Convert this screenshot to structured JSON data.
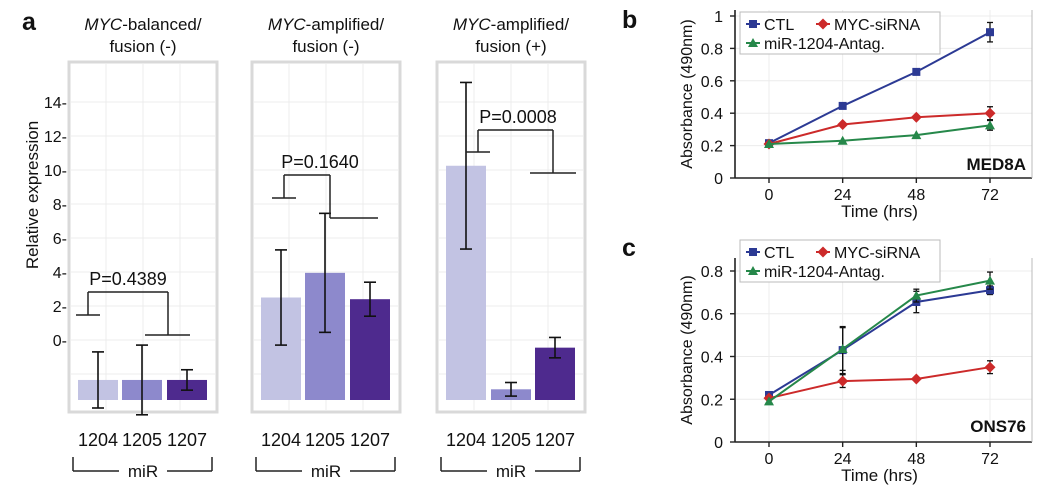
{
  "colors": {
    "bar_1204": "#c2c3e3",
    "bar_1205": "#8d89cc",
    "bar_1207": "#4e2a8e",
    "panel_border": "#d9d9d9",
    "grid": "#ececec",
    "ctl": "#2c3a94",
    "myc": "#cc2a2a",
    "antag": "#26884a"
  },
  "chart_data": [
    {
      "panel_letter": "a",
      "type": "bar",
      "ylabel": "Relative expression",
      "xlabel": "miR",
      "ytick_labels": [
        "14-",
        "12-",
        "10-",
        "8-",
        "6-",
        "4-",
        "2-",
        "0-"
      ],
      "ytick_values": [
        14,
        12,
        10,
        8,
        6,
        4,
        2,
        0
      ],
      "ylim": [
        -3.6,
        16
      ],
      "categories": [
        "1204",
        "1205",
        "1207"
      ],
      "panels": [
        {
          "title_italic": "MYC",
          "title_rest": "-balanced/",
          "title_line2": "fusion (-)",
          "values": [
            -2.35,
            -2.35,
            -2.35
          ],
          "errors": [
            1.65,
            2.05,
            0.6
          ],
          "pvalue": "P=0.4389"
        },
        {
          "title_italic": "MYC",
          "title_rest": "-amplified/",
          "title_line2": "fusion (-)",
          "values": [
            2.5,
            3.95,
            2.4
          ],
          "errors": [
            2.8,
            3.5,
            1.0
          ],
          "pvalue": "P=0.1640"
        },
        {
          "title_italic": "MYC",
          "title_rest": "-amplified/",
          "title_line2": "fusion (+)",
          "values": [
            10.25,
            -2.9,
            -0.45
          ],
          "errors": [
            4.9,
            0.4,
            0.6
          ],
          "pvalue": "P=0.0008"
        }
      ]
    },
    {
      "panel_letter": "b",
      "type": "line",
      "cell_line": "MED8A",
      "xlabel": "Time (hrs)",
      "ylabel": "Absorbance (490nm)",
      "x": [
        0,
        24,
        48,
        72
      ],
      "xtick_labels": [
        "0",
        "24",
        "48",
        "72"
      ],
      "ytick_labels": [
        "1",
        "0.8",
        "0.6",
        "0.4",
        "0.2",
        "0"
      ],
      "ytick_values": [
        1,
        0.8,
        0.6,
        0.4,
        0.2,
        0
      ],
      "ylim": [
        0,
        1
      ],
      "legend": [
        "CTL",
        "MYC-siRNA",
        "miR-1204-Antag."
      ],
      "series": [
        {
          "name": "CTL",
          "values": [
            0.215,
            0.445,
            0.655,
            0.9
          ],
          "errors": [
            0.01,
            0.01,
            0.01,
            0.06
          ]
        },
        {
          "name": "MYC-siRNA",
          "values": [
            0.21,
            0.33,
            0.375,
            0.4
          ],
          "errors": [
            0.01,
            0.01,
            0.01,
            0.04
          ]
        },
        {
          "name": "miR-1204-Antag.",
          "values": [
            0.21,
            0.23,
            0.265,
            0.325
          ],
          "errors": [
            0.01,
            0.01,
            0.01,
            0.03
          ]
        }
      ]
    },
    {
      "panel_letter": "c",
      "type": "line",
      "cell_line": "ONS76",
      "xlabel": "Time (hrs)",
      "ylabel": "Absorbance (490nm)",
      "x": [
        0,
        24,
        48,
        72
      ],
      "xtick_labels": [
        "0",
        "24",
        "48",
        "72"
      ],
      "ytick_labels": [
        "0.8",
        "0.6",
        "0.4",
        "0.2",
        "0"
      ],
      "ytick_values": [
        0.8,
        0.6,
        0.4,
        0.2,
        0
      ],
      "ylim": [
        0,
        0.8
      ],
      "legend": [
        "CTL",
        "MYC-siRNA",
        "miR-1204-Antag."
      ],
      "series": [
        {
          "name": "CTL",
          "values": [
            0.22,
            0.43,
            0.655,
            0.71
          ],
          "errors": [
            0.01,
            0.11,
            0.05,
            0.02
          ]
        },
        {
          "name": "MYC-siRNA",
          "values": [
            0.205,
            0.285,
            0.295,
            0.35
          ],
          "errors": [
            0.01,
            0.03,
            0.01,
            0.03
          ]
        },
        {
          "name": "miR-1204-Antag.",
          "values": [
            0.19,
            0.435,
            0.685,
            0.755
          ],
          "errors": [
            0.01,
            0.1,
            0.03,
            0.04
          ]
        }
      ]
    }
  ]
}
